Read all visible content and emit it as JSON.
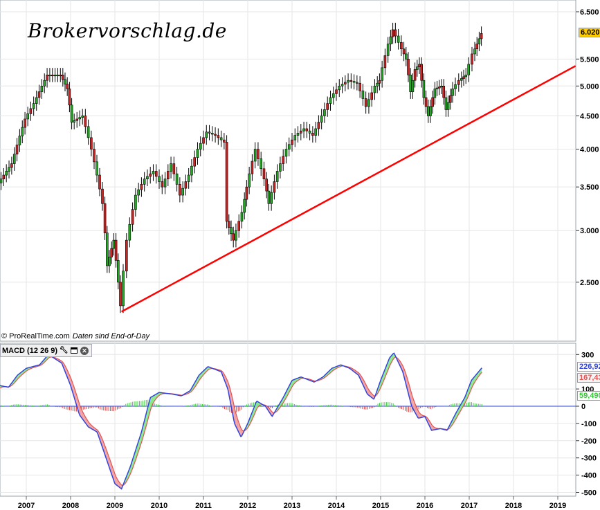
{
  "watermark": "Brokervorschlag.de",
  "credit": {
    "source": "© ProRealTime.com",
    "note": "Daten sind End-of-Day"
  },
  "macd_header": {
    "label": "MACD (12 26 9)",
    "icons": [
      "wrench-icon",
      "window-icon",
      "close-icon"
    ]
  },
  "colors": {
    "up": "#22aa22",
    "down": "#cc2222",
    "trendline": "#ff0000",
    "macd": "#3344dd",
    "signal": "#e05555",
    "hist_up": "#44cc44",
    "hist_down": "#dd4444",
    "current_price_bg": "#ffcc00"
  },
  "chart_data": [
    {
      "type": "candlestick",
      "scale": "log",
      "ylim": [
        2200,
        6700
      ],
      "xlim": [
        2006.4,
        2019.6
      ],
      "y_ticks": [
        "6.500",
        "5.500",
        "5.000",
        "4.500",
        "4.000",
        "3.500",
        "3.000",
        "2.500"
      ],
      "y_tick_values": [
        6500,
        5500,
        5000,
        4500,
        4000,
        3500,
        3000,
        2500
      ],
      "current_price_label": "6.020,",
      "current_price": 6020,
      "grid": true,
      "points": [
        [
          2006.4,
          3550
        ],
        [
          2006.7,
          3800
        ],
        [
          2007.0,
          4450
        ],
        [
          2007.2,
          4700
        ],
        [
          2007.5,
          5200
        ],
        [
          2007.8,
          5200
        ],
        [
          2007.95,
          4950
        ],
        [
          2008.05,
          4400
        ],
        [
          2008.3,
          4500
        ],
        [
          2008.5,
          4000
        ],
        [
          2008.75,
          3300
        ],
        [
          2008.85,
          2650
        ],
        [
          2009.0,
          2900
        ],
        [
          2009.15,
          2300
        ],
        [
          2009.3,
          2900
        ],
        [
          2009.5,
          3400
        ],
        [
          2009.7,
          3600
        ],
        [
          2009.9,
          3700
        ],
        [
          2010.1,
          3500
        ],
        [
          2010.3,
          3800
        ],
        [
          2010.5,
          3400
        ],
        [
          2010.7,
          3650
        ],
        [
          2010.9,
          4000
        ],
        [
          2011.1,
          4250
        ],
        [
          2011.3,
          4200
        ],
        [
          2011.5,
          4100
        ],
        [
          2011.55,
          3100
        ],
        [
          2011.7,
          2900
        ],
        [
          2011.9,
          3200
        ],
        [
          2012.0,
          3500
        ],
        [
          2012.2,
          4000
        ],
        [
          2012.4,
          3600
        ],
        [
          2012.5,
          3300
        ],
        [
          2012.7,
          3700
        ],
        [
          2012.9,
          4000
        ],
        [
          2013.1,
          4200
        ],
        [
          2013.3,
          4300
        ],
        [
          2013.5,
          4200
        ],
        [
          2013.7,
          4500
        ],
        [
          2013.9,
          4800
        ],
        [
          2014.1,
          5000
        ],
        [
          2014.3,
          5100
        ],
        [
          2014.5,
          5050
        ],
        [
          2014.7,
          4650
        ],
        [
          2014.9,
          5000
        ],
        [
          2015.0,
          5100
        ],
        [
          2015.2,
          5800
        ],
        [
          2015.3,
          6100
        ],
        [
          2015.5,
          5700
        ],
        [
          2015.6,
          5500
        ],
        [
          2015.7,
          4900
        ],
        [
          2015.8,
          5300
        ],
        [
          2015.9,
          5400
        ],
        [
          2016.0,
          4800
        ],
        [
          2016.1,
          4500
        ],
        [
          2016.25,
          4950
        ],
        [
          2016.4,
          5000
        ],
        [
          2016.5,
          4600
        ],
        [
          2016.65,
          4950
        ],
        [
          2016.8,
          5100
        ],
        [
          2016.95,
          5200
        ],
        [
          2017.1,
          5600
        ],
        [
          2017.2,
          5800
        ],
        [
          2017.3,
          6020
        ]
      ],
      "trendline": [
        [
          2009.15,
          2253
        ],
        [
          2019.4,
          5367
        ]
      ]
    },
    {
      "type": "line",
      "title": "MACD (12 26 9)",
      "ylim": [
        -520,
        330
      ],
      "y_ticks": [
        "300",
        "100",
        "0",
        "-100",
        "-200",
        "-300",
        "-400",
        "-500"
      ],
      "y_tick_values": [
        300,
        100,
        0,
        -100,
        -200,
        -300,
        -400,
        -500
      ],
      "x_ticks": [
        "2007",
        "2008",
        "2009",
        "2010",
        "2011",
        "2012",
        "2013",
        "2014",
        "2015",
        "2016",
        "2017",
        "2018",
        "2019"
      ],
      "x_tick_values": [
        2007,
        2008,
        2009,
        2010,
        2011,
        2012,
        2013,
        2014,
        2015,
        2016,
        2017,
        2018,
        2019
      ],
      "last_values": {
        "macd": "226,92",
        "signal": "167,43",
        "histogram": "59,490"
      },
      "macd": [
        [
          2006.4,
          120
        ],
        [
          2006.6,
          110
        ],
        [
          2006.8,
          180
        ],
        [
          2007.0,
          220
        ],
        [
          2007.3,
          240
        ],
        [
          2007.5,
          300
        ],
        [
          2007.8,
          250
        ],
        [
          2008.0,
          120
        ],
        [
          2008.2,
          -50
        ],
        [
          2008.4,
          -120
        ],
        [
          2008.6,
          -150
        ],
        [
          2008.8,
          -300
        ],
        [
          2009.0,
          -450
        ],
        [
          2009.15,
          -480
        ],
        [
          2009.35,
          -350
        ],
        [
          2009.6,
          -150
        ],
        [
          2009.8,
          50
        ],
        [
          2010.0,
          80
        ],
        [
          2010.3,
          70
        ],
        [
          2010.5,
          60
        ],
        [
          2010.7,
          90
        ],
        [
          2010.9,
          180
        ],
        [
          2011.1,
          230
        ],
        [
          2011.4,
          200
        ],
        [
          2011.55,
          100
        ],
        [
          2011.7,
          -100
        ],
        [
          2011.85,
          -180
        ],
        [
          2012.0,
          -100
        ],
        [
          2012.2,
          30
        ],
        [
          2012.4,
          0
        ],
        [
          2012.55,
          -60
        ],
        [
          2012.8,
          50
        ],
        [
          2013.0,
          150
        ],
        [
          2013.2,
          170
        ],
        [
          2013.5,
          140
        ],
        [
          2013.7,
          170
        ],
        [
          2013.9,
          220
        ],
        [
          2014.1,
          240
        ],
        [
          2014.3,
          220
        ],
        [
          2014.5,
          180
        ],
        [
          2014.7,
          70
        ],
        [
          2014.85,
          40
        ],
        [
          2015.0,
          150
        ],
        [
          2015.2,
          280
        ],
        [
          2015.3,
          310
        ],
        [
          2015.5,
          200
        ],
        [
          2015.7,
          0
        ],
        [
          2015.85,
          -70
        ],
        [
          2016.0,
          -60
        ],
        [
          2016.15,
          -140
        ],
        [
          2016.35,
          -130
        ],
        [
          2016.5,
          -140
        ],
        [
          2016.7,
          -40
        ],
        [
          2016.9,
          50
        ],
        [
          2017.05,
          150
        ],
        [
          2017.3,
          227
        ]
      ]
    }
  ]
}
